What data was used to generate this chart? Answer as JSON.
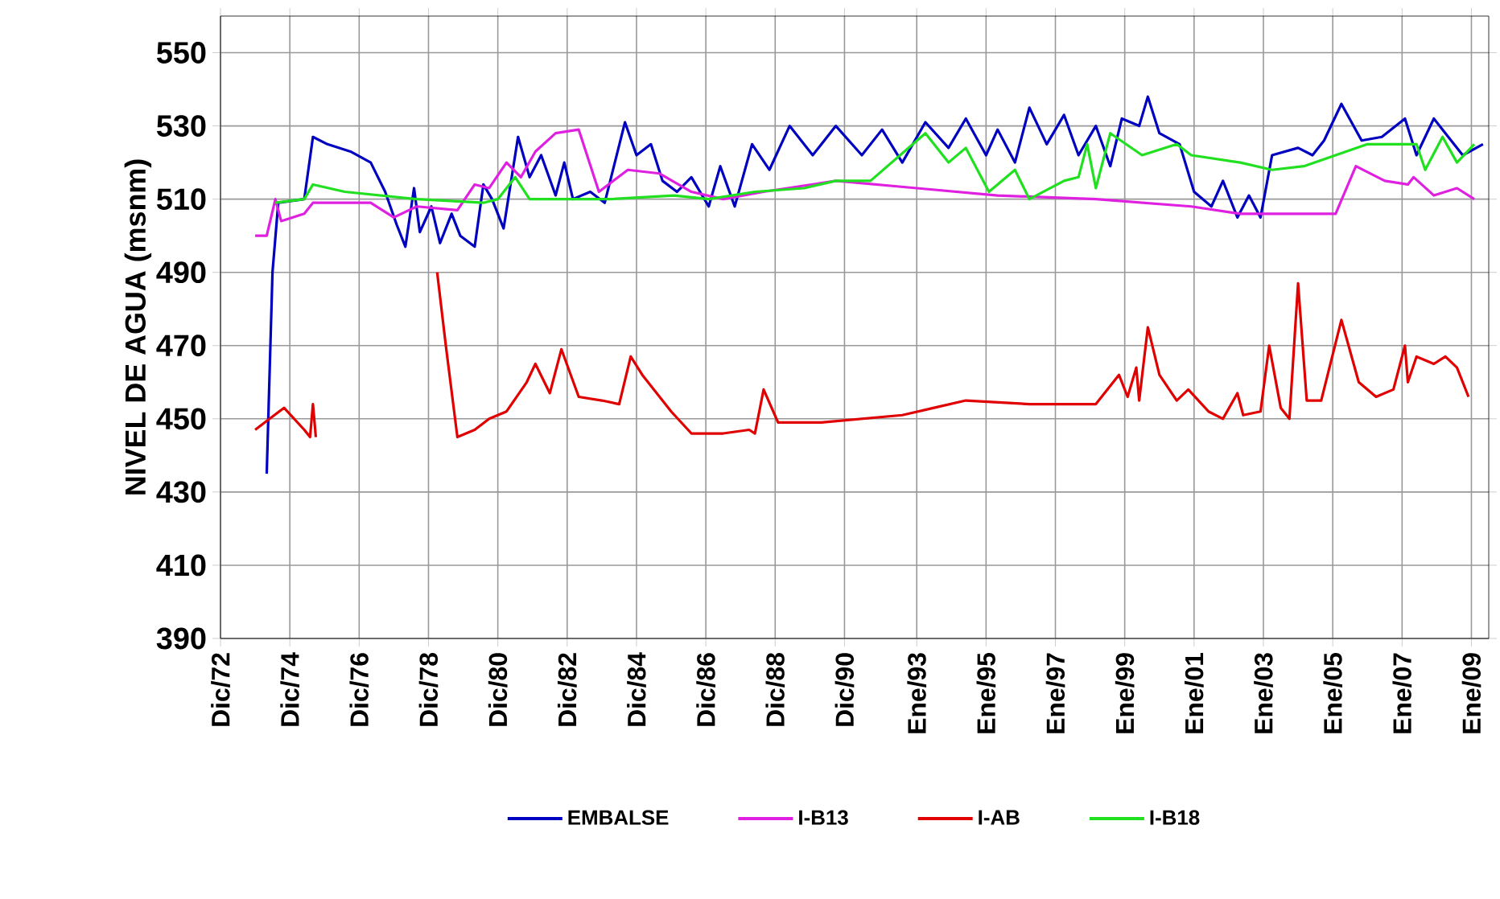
{
  "chart_data": {
    "type": "line",
    "ylabel": "NIVEL DE AGUA (msnm)",
    "xlim": [
      "1972-12",
      "2009-07"
    ],
    "ylim": [
      390,
      560
    ],
    "xticks": [
      {
        "value": "1972-12",
        "label": "Dic/72"
      },
      {
        "value": "1974-12",
        "label": "Dic/74"
      },
      {
        "value": "1976-12",
        "label": "Dic/76"
      },
      {
        "value": "1978-12",
        "label": "Dic/78"
      },
      {
        "value": "1980-12",
        "label": "Dic/80"
      },
      {
        "value": "1982-12",
        "label": "Dic/82"
      },
      {
        "value": "1984-12",
        "label": "Dic/84"
      },
      {
        "value": "1986-12",
        "label": "Dic/86"
      },
      {
        "value": "1988-12",
        "label": "Dic/88"
      },
      {
        "value": "1990-12",
        "label": "Dic/90"
      },
      {
        "value": "1993-01",
        "label": "Ene/93"
      },
      {
        "value": "1995-01",
        "label": "Ene/95"
      },
      {
        "value": "1997-01",
        "label": "Ene/97"
      },
      {
        "value": "1999-01",
        "label": "Ene/99"
      },
      {
        "value": "2001-01",
        "label": "Ene/01"
      },
      {
        "value": "2003-01",
        "label": "Ene/03"
      },
      {
        "value": "2005-01",
        "label": "Ene/05"
      },
      {
        "value": "2007-01",
        "label": "Ene/07"
      },
      {
        "value": "2009-01",
        "label": "Ene/09"
      }
    ],
    "yticks": [
      390,
      410,
      430,
      450,
      470,
      490,
      510,
      530,
      550
    ],
    "grid": true,
    "legend": "bottom",
    "marker": "none",
    "line_style": "solid",
    "series": [
      {
        "name": "EMBALSE",
        "color": "#0000c0",
        "x": [
          "1974-04",
          "1974-06",
          "1974-08",
          "1975-05",
          "1975-08",
          "1976-01",
          "1976-09",
          "1977-04",
          "1977-09",
          "1978-01",
          "1978-04",
          "1978-07",
          "1978-09",
          "1979-01",
          "1979-04",
          "1979-08",
          "1979-11",
          "1980-04",
          "1980-07",
          "1980-10",
          "1981-02",
          "1981-07",
          "1981-11",
          "1982-03",
          "1982-08",
          "1982-11",
          "1983-02",
          "1983-08",
          "1984-01",
          "1984-08",
          "1984-12",
          "1985-05",
          "1985-09",
          "1986-02",
          "1986-07",
          "1987-01",
          "1987-05",
          "1987-10",
          "1988-04",
          "1988-10",
          "1989-05",
          "1990-01",
          "1990-09",
          "1991-06",
          "1992-01",
          "1992-08",
          "1993-04",
          "1993-12",
          "1994-06",
          "1995-01",
          "1995-05",
          "1995-11",
          "1996-04",
          "1996-10",
          "1997-04",
          "1997-09",
          "1998-03",
          "1998-08",
          "1998-12",
          "1999-06",
          "1999-09",
          "2000-01",
          "2000-08",
          "2001-01",
          "2001-07",
          "2001-11",
          "2002-04",
          "2002-08",
          "2002-12",
          "2003-04",
          "2004-01",
          "2004-06",
          "2004-10",
          "2005-04",
          "2005-11",
          "2006-06",
          "2007-02",
          "2007-06",
          "2007-12",
          "2008-04",
          "2008-10",
          "2009-05"
        ],
        "values": [
          435,
          490,
          509,
          510,
          527,
          525,
          523,
          520,
          512,
          503,
          497,
          513,
          501,
          508,
          498,
          506,
          500,
          497,
          514,
          510,
          502,
          527,
          516,
          522,
          511,
          520,
          510,
          512,
          509,
          531,
          522,
          525,
          515,
          512,
          516,
          508,
          519,
          508,
          525,
          518,
          530,
          522,
          530,
          522,
          529,
          520,
          531,
          524,
          532,
          522,
          529,
          520,
          535,
          525,
          533,
          522,
          530,
          519,
          532,
          530,
          538,
          528,
          525,
          512,
          508,
          515,
          505,
          511,
          505,
          522,
          524,
          522,
          526,
          536,
          526,
          527,
          532,
          522,
          532,
          528,
          522,
          525
        ]
      },
      {
        "name": "I-B13",
        "color": "#e020e0",
        "x": [
          "1973-12",
          "1974-04",
          "1974-07",
          "1974-09",
          "1975-05",
          "1975-08",
          "1977-04",
          "1977-12",
          "1978-08",
          "1979-10",
          "1980-04",
          "1980-09",
          "1981-03",
          "1981-08",
          "1982-01",
          "1982-08",
          "1983-04",
          "1983-11",
          "1984-09",
          "1985-08",
          "1986-07",
          "1987-06",
          "1988-08",
          "1990-09",
          "1993-01",
          "1995-05",
          "1998-03",
          "2000-12",
          "2002-05",
          "2005-02",
          "2005-09",
          "2006-07",
          "2007-03",
          "2007-05",
          "2007-12",
          "2008-08",
          "2009-02"
        ],
        "values": [
          500,
          500,
          510,
          504,
          506,
          509,
          509,
          505,
          508,
          507,
          514,
          513,
          520,
          516,
          523,
          528,
          529,
          512,
          518,
          517,
          512,
          510,
          512,
          515,
          513,
          511,
          510,
          508,
          506,
          506,
          519,
          515,
          514,
          516,
          511,
          513,
          510
        ]
      },
      {
        "name": "I-AB",
        "color": "#e00000",
        "x": [
          "1973-12",
          "1974-05",
          "1974-10",
          "1975-05",
          "1975-07",
          "1975-08",
          "1975-09",
          "1977-01",
          "1979-03",
          "1979-06",
          "1979-10",
          "1980-04",
          "1980-09",
          "1981-03",
          "1981-10",
          "1982-01",
          "1982-06",
          "1982-10",
          "1983-04",
          "1983-12",
          "1984-06",
          "1984-10",
          "1985-02",
          "1985-12",
          "1986-07",
          "1987-06",
          "1988-03",
          "1988-05",
          "1988-08",
          "1989-01",
          "1990-04",
          "1992-08",
          "1993-07",
          "1994-06",
          "1996-04",
          "1998-03",
          "1998-11",
          "1999-02",
          "1999-05",
          "1999-06",
          "1999-09",
          "2000-01",
          "2000-07",
          "2000-11",
          "2001-06",
          "2001-11",
          "2002-04",
          "2002-06",
          "2002-12",
          "2003-03",
          "2003-07",
          "2003-10",
          "2004-01",
          "2004-04",
          "2004-09",
          "2005-04",
          "2005-10",
          "2006-04",
          "2006-10",
          "2007-02",
          "2007-03",
          "2007-06",
          "2007-12",
          "2008-04",
          "2008-08",
          "2008-12"
        ],
        "values": [
          447,
          450,
          453,
          447,
          445,
          454,
          445,
          null,
          490,
          470,
          445,
          447,
          450,
          452,
          460,
          465,
          457,
          469,
          456,
          455,
          454,
          467,
          462,
          452,
          446,
          446,
          447,
          446,
          458,
          449,
          449,
          451,
          453,
          455,
          454,
          454,
          462,
          456,
          464,
          455,
          475,
          462,
          455,
          458,
          452,
          450,
          457,
          451,
          452,
          470,
          453,
          450,
          487,
          455,
          455,
          477,
          460,
          456,
          458,
          470,
          460,
          467,
          465,
          467,
          464,
          456
        ]
      },
      {
        "name": "I-B18",
        "color": "#20e020",
        "x": [
          "1974-07",
          "1975-05",
          "1975-08",
          "1976-07",
          "1978-08",
          "1980-07",
          "1980-12",
          "1981-06",
          "1981-11",
          "1984-03",
          "1986-01",
          "1987-01",
          "1988-05",
          "1989-10",
          "1990-09",
          "1991-09",
          "1993-04",
          "1993-12",
          "1994-06",
          "1995-02",
          "1995-11",
          "1996-04",
          "1997-04",
          "1997-09",
          "1997-12",
          "1998-03",
          "1998-08",
          "1999-07",
          "2000-07",
          "2000-12",
          "2002-05",
          "2003-04",
          "2004-03",
          "2005-02",
          "2006-01",
          "2007-06",
          "2007-09",
          "2008-03",
          "2008-08",
          "2009-02"
        ],
        "values": [
          509,
          510,
          514,
          512,
          510,
          509,
          510,
          516,
          510,
          510,
          511,
          510,
          512,
          513,
          515,
          515,
          528,
          520,
          524,
          512,
          518,
          510,
          515,
          516,
          525,
          513,
          528,
          522,
          525,
          522,
          520,
          518,
          519,
          522,
          525,
          525,
          518,
          527,
          520,
          525
        ]
      }
    ]
  }
}
